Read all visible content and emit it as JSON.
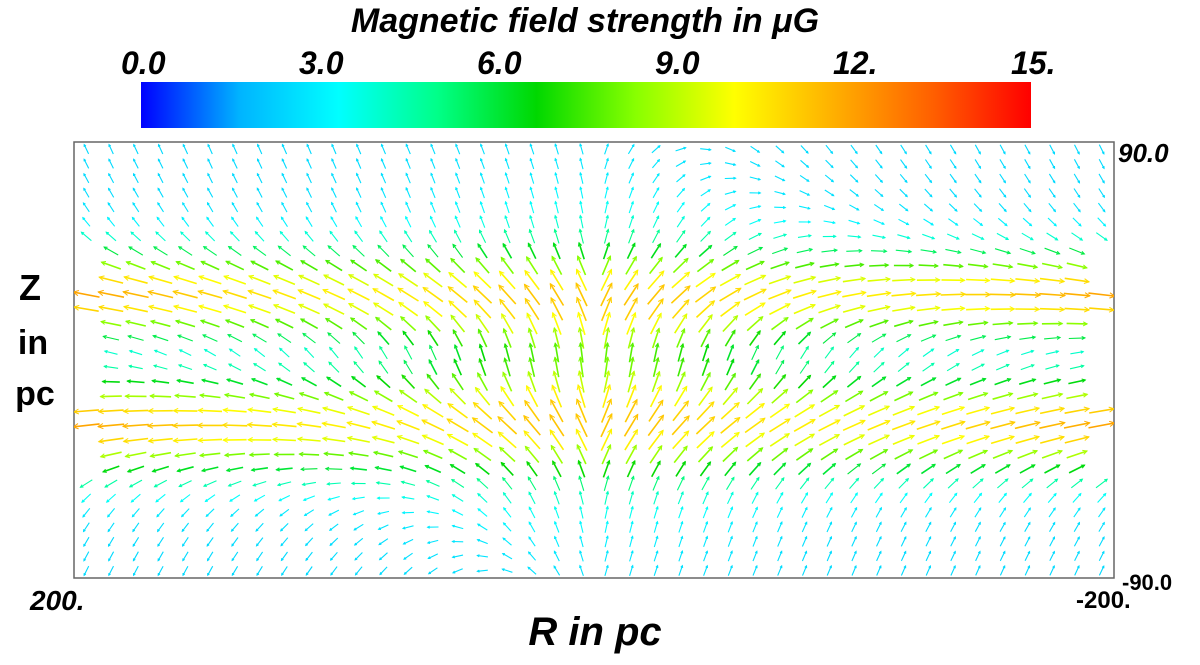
{
  "chart_data": {
    "type": "vector-field",
    "colorbar": {
      "title": "Magnetic field strength in μG",
      "range": [
        0,
        15
      ],
      "ticks": [
        "0.0",
        "3.0",
        "6.0",
        "9.0",
        "12.",
        "15."
      ],
      "colors": [
        "#0000ff",
        "#00b4ff",
        "#00ffff",
        "#00ff88",
        "#00d800",
        "#88ff00",
        "#ffff00",
        "#ffb000",
        "#ff6000",
        "#ff0000"
      ]
    },
    "x_axis": {
      "label": "R in pc",
      "range": [
        200,
        -200
      ],
      "tick_labels": [
        "200.",
        "-200."
      ]
    },
    "y_axis": {
      "label_lines": [
        "Z",
        "in",
        "pc"
      ],
      "range": [
        -90,
        90
      ],
      "tick_labels": [
        "90.0",
        "-90.0"
      ]
    },
    "grid": {
      "columns": 42,
      "rows": 30
    }
  }
}
